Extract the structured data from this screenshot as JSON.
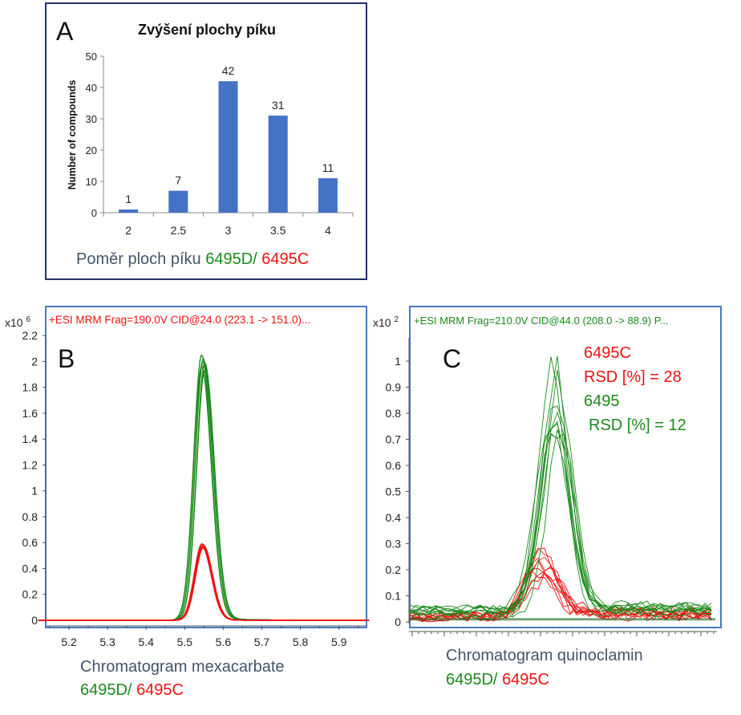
{
  "panel_a": {
    "letter": "A",
    "caption_prefix": "Poměr ploch píku",
    "caption_green": "6495D/",
    "caption_red": "6495C"
  },
  "panel_b": {
    "letter": "B",
    "header": "+ESI MRM Frag=190.0V CID@24.0 (223.1 -> 151.0)...",
    "exponent_base": "x10",
    "exponent_power": "6",
    "caption_line1": "Chromatogram mexacarbate",
    "caption_green": "6495D/",
    "caption_red": "6495C"
  },
  "panel_c": {
    "letter": "C",
    "header": "+ESI MRM Frag=210.0V CID@44.0 (208.0 -> 88.9) P...",
    "exponent_base": "x10",
    "exponent_power": "2",
    "annotations": {
      "red_name": "6495C",
      "red_rsd": "RSD [%] = 28",
      "green_name": "6495",
      "green_rsd": "RSD [%] = 12"
    },
    "caption_line1": "Chromatogram quinoclamin",
    "caption_green": "6495D/",
    "caption_red": "6495C"
  },
  "colors": {
    "bar": "#4472c4",
    "green": "#1a8a1a",
    "red": "#ee1111",
    "frame": "#4a78c2"
  },
  "chart_data": [
    {
      "type": "bar",
      "title": "Zvýšení plochy píku",
      "ylabel": "Number of compounds",
      "xlabel": "",
      "categories": [
        "2",
        "2.5",
        "3",
        "3.5",
        "4"
      ],
      "values": [
        1,
        7,
        42,
        31,
        11
      ],
      "data_labels": [
        "1",
        "7",
        "42",
        "31",
        "11"
      ],
      "ylim": [
        0,
        50
      ],
      "yticks": [
        "0",
        "10",
        "20",
        "30",
        "40",
        "50"
      ],
      "grid": false
    },
    {
      "type": "line",
      "title": "",
      "xlim": [
        5.15,
        5.98
      ],
      "ylim": [
        0,
        2.25
      ],
      "xticks": [
        "5.2",
        "5.3",
        "5.4",
        "5.5",
        "5.6",
        "5.7",
        "5.8",
        "5.9"
      ],
      "yticks": [
        "0",
        "0.2",
        "0.4",
        "0.6",
        "0.8",
        "1",
        "1.2",
        "1.4",
        "1.6",
        "1.8",
        "2",
        "2.2"
      ],
      "series": [
        {
          "color": "#1a8a1a",
          "peak_time": 5.548,
          "peak_heights": [
            2.05,
            2.02,
            1.99,
            1.96,
            2.0,
            1.93
          ]
        },
        {
          "color": "#ee1111",
          "peak_time": 5.545,
          "peak_heights": [
            0.59,
            0.58,
            0.57,
            0.56
          ]
        }
      ]
    },
    {
      "type": "line",
      "title": "",
      "ylim": [
        0,
        1.08
      ],
      "yticks": [
        "0",
        "0.1",
        "0.2",
        "0.3",
        "0.4",
        "0.5",
        "0.6",
        "0.7",
        "0.8",
        "0.9",
        "1"
      ],
      "series": [
        {
          "color": "#1a8a1a",
          "peak_heights": [
            1.0,
            0.9,
            0.86,
            0.8,
            0.76,
            0.75,
            0.73,
            0.72,
            0.7,
            0.68
          ]
        },
        {
          "color": "#ee1111",
          "peak_heights": [
            0.25,
            0.24,
            0.23,
            0.22,
            0.21,
            0.2,
            0.19,
            0.18,
            0.17,
            0.15
          ]
        }
      ]
    }
  ]
}
